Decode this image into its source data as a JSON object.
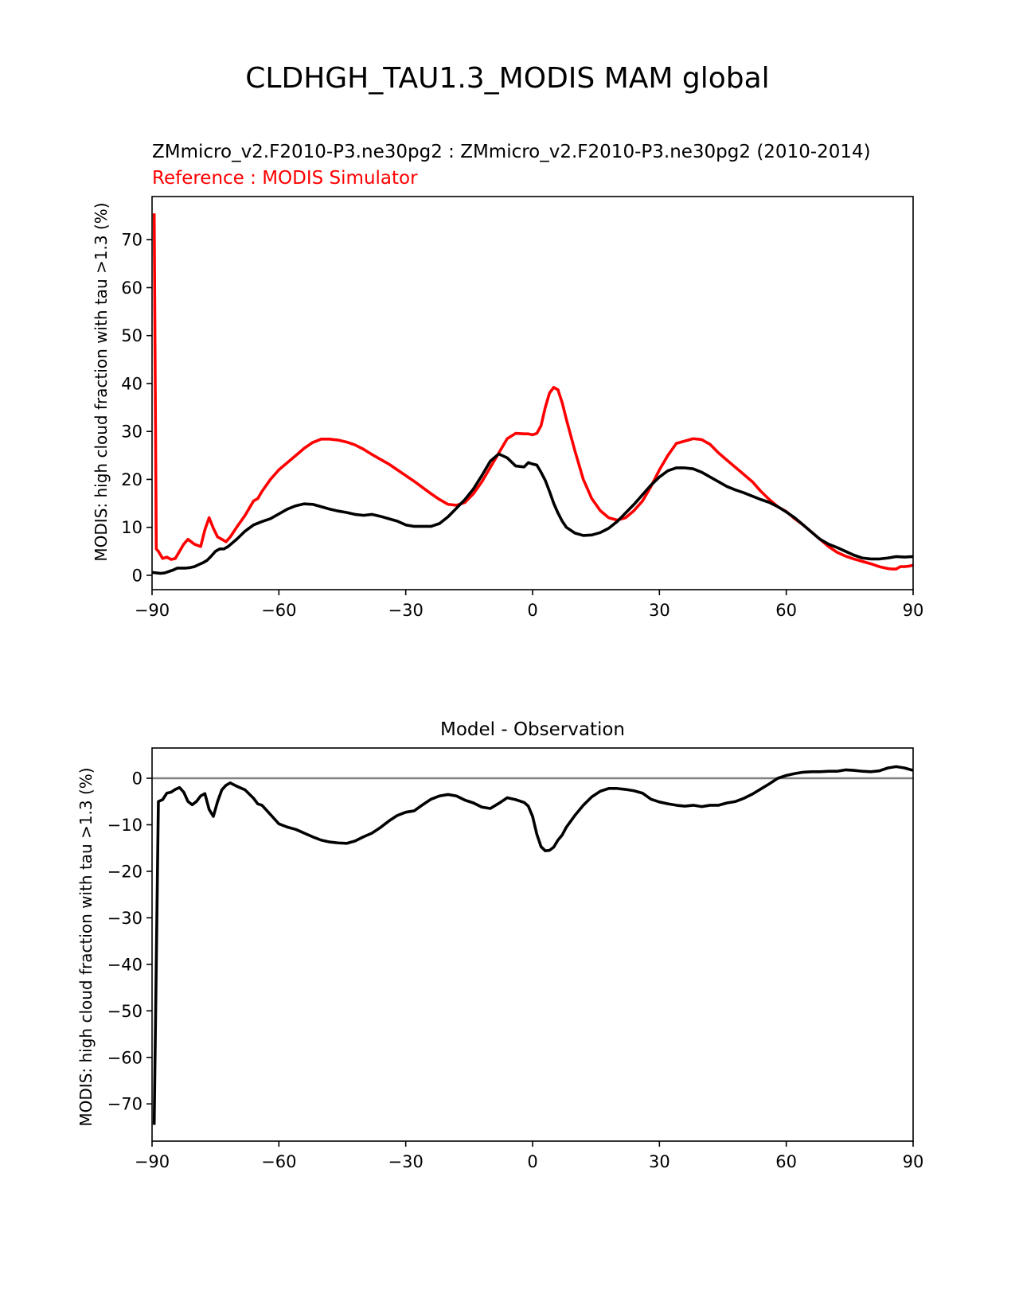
{
  "figure": {
    "title": "CLDHGH_TAU1.3_MODIS MAM global"
  },
  "chart_data": [
    {
      "type": "line",
      "title": "ZMmicro_v2.F2010-P3.ne30pg2 : ZMmicro_v2.F2010-P3.ne30pg2 (2010-2014)",
      "subtitle": "Reference : MODIS Simulator",
      "xlabel": "",
      "ylabel": "MODIS: high cloud fraction with tau >1.3 (%)",
      "xlim": [
        -90,
        90
      ],
      "ylim": [
        -3,
        79
      ],
      "xticks": [
        -90,
        -60,
        -30,
        0,
        30,
        60,
        90
      ],
      "xtick_labels": [
        "−90",
        "−60",
        "−30",
        "0",
        "30",
        "60",
        "90"
      ],
      "yticks": [
        0,
        10,
        20,
        30,
        40,
        50,
        60,
        70
      ],
      "ytick_labels": [
        "0",
        "10",
        "20",
        "30",
        "40",
        "50",
        "60",
        "70"
      ],
      "grid": false,
      "series": [
        {
          "color": "#ff0000",
          "x": [
            -89.5,
            -89,
            -88.5,
            -87.5,
            -86.5,
            -85.5,
            -84.5,
            -83.5,
            -82.5,
            -81.5,
            -80,
            -78.5,
            -77.5,
            -76.5,
            -75.5,
            -74.5,
            -73.5,
            -72.5,
            -71.5,
            -70,
            -68,
            -66,
            -65,
            -64,
            -62,
            -60,
            -58,
            -56,
            -54,
            -52,
            -50,
            -48,
            -46,
            -44,
            -42,
            -40,
            -38,
            -36,
            -34,
            -32,
            -30,
            -28,
            -26,
            -24,
            -22,
            -20,
            -18,
            -16,
            -14,
            -12,
            -10,
            -8,
            -6,
            -4,
            -2,
            -1,
            0,
            1,
            2,
            3,
            4,
            5,
            6,
            7,
            8,
            10,
            12,
            14,
            16,
            18,
            20,
            22,
            24,
            26,
            28,
            30,
            32,
            34,
            36,
            38,
            40,
            42,
            44,
            46,
            48,
            50,
            52,
            54,
            56,
            58,
            60,
            62,
            64,
            66,
            68,
            70,
            72,
            74,
            76,
            78,
            80,
            82,
            84,
            85,
            86,
            87,
            88,
            89,
            90
          ],
          "y": [
            75.5,
            5.5,
            5,
            3.5,
            3.8,
            3.3,
            3.5,
            5,
            6.5,
            7.5,
            6.5,
            6,
            9.5,
            12,
            9.8,
            8,
            7.5,
            7,
            8,
            10,
            12.5,
            15.5,
            16,
            17.5,
            20,
            22,
            23.5,
            25,
            26.5,
            27.7,
            28.4,
            28.4,
            28.2,
            27.8,
            27.2,
            26.3,
            25.2,
            24.2,
            23.2,
            22,
            20.8,
            19.6,
            18.3,
            17,
            15.8,
            14.8,
            14.6,
            15.2,
            17,
            19.5,
            22.5,
            25.5,
            28.5,
            29.6,
            29.5,
            29.5,
            29.3,
            29.6,
            31.2,
            35,
            38,
            39.2,
            38.7,
            36,
            32.5,
            26,
            20,
            16,
            13.5,
            12,
            11.5,
            12,
            13.5,
            15.5,
            18.5,
            22,
            25,
            27.5,
            28,
            28.5,
            28.3,
            27.3,
            25.5,
            24,
            22.5,
            21,
            19.5,
            17.5,
            15.8,
            14.3,
            13.3,
            11.8,
            10.5,
            9,
            7.5,
            6,
            4.8,
            4,
            3.4,
            2.9,
            2.4,
            1.8,
            1.4,
            1.3,
            1.3,
            1.8,
            1.8,
            1.9,
            2.1
          ]
        },
        {
          "color": "#000000",
          "x": [
            -90,
            -89,
            -88,
            -87,
            -86,
            -85,
            -84,
            -83,
            -82,
            -81,
            -80,
            -79,
            -78,
            -77,
            -76,
            -75,
            -74,
            -73,
            -72,
            -70,
            -68,
            -66,
            -64,
            -62,
            -60,
            -58,
            -56,
            -54,
            -52,
            -50,
            -48,
            -46,
            -44,
            -42,
            -40,
            -38,
            -36,
            -34,
            -32,
            -30,
            -28,
            -26,
            -24,
            -22,
            -20,
            -18,
            -16,
            -14,
            -12,
            -10,
            -8,
            -6,
            -4,
            -3,
            -2,
            -1,
            0,
            1,
            2,
            3,
            4,
            5,
            6,
            7,
            8,
            10,
            12,
            14,
            16,
            18,
            20,
            22,
            24,
            26,
            28,
            30,
            32,
            34,
            36,
            38,
            40,
            42,
            44,
            46,
            48,
            50,
            52,
            54,
            56,
            58,
            60,
            62,
            64,
            66,
            68,
            70,
            72,
            74,
            76,
            78,
            80,
            82,
            84,
            86,
            88,
            90
          ],
          "y": [
            0.6,
            0.5,
            0.4,
            0.5,
            0.8,
            1.1,
            1.5,
            1.5,
            1.5,
            1.6,
            1.8,
            2.2,
            2.6,
            3.1,
            4,
            5,
            5.5,
            5.5,
            6,
            7.5,
            9.2,
            10.5,
            11.2,
            11.8,
            12.8,
            13.8,
            14.5,
            14.9,
            14.8,
            14.3,
            13.8,
            13.4,
            13.1,
            12.7,
            12.5,
            12.7,
            12.3,
            11.8,
            11.3,
            10.5,
            10.2,
            10.2,
            10.2,
            10.8,
            12.2,
            14,
            15.8,
            18,
            20.8,
            23.8,
            25.3,
            24.5,
            22.8,
            22.7,
            22.6,
            23.5,
            23.2,
            23,
            21.5,
            19.8,
            17.5,
            15,
            13,
            11.3,
            10,
            8.8,
            8.3,
            8.4,
            8.9,
            9.8,
            11.2,
            13,
            14.8,
            16.8,
            18.8,
            20.5,
            21.8,
            22.4,
            22.4,
            22.2,
            21.5,
            20.5,
            19.5,
            18.5,
            17.8,
            17.2,
            16.5,
            15.8,
            15.2,
            14.3,
            13.2,
            12,
            10.5,
            9,
            7.5,
            6.5,
            5.8,
            5,
            4.2,
            3.6,
            3.4,
            3.4,
            3.6,
            3.9,
            3.8,
            3.9
          ]
        }
      ]
    },
    {
      "type": "line",
      "title": "Model - Observation",
      "xlabel": "",
      "ylabel": "MODIS: high cloud fraction with tau >1.3 (%)",
      "xlim": [
        -90,
        90
      ],
      "ylim": [
        -78,
        6.5
      ],
      "xticks": [
        -90,
        -60,
        -30,
        0,
        30,
        60,
        90
      ],
      "xtick_labels": [
        "−90",
        "−60",
        "−30",
        "0",
        "30",
        "60",
        "90"
      ],
      "yticks": [
        0,
        -10,
        -20,
        -30,
        -40,
        -50,
        -60,
        -70
      ],
      "ytick_labels": [
        "0",
        "−10",
        "−20",
        "−30",
        "−40",
        "−50",
        "−60",
        "−70"
      ],
      "grid": false,
      "zero_line_color": "#808080",
      "series": [
        {
          "color": "#000000",
          "x": [
            -89.5,
            -88.5,
            -87.5,
            -86.5,
            -85.5,
            -84.5,
            -83.5,
            -82.5,
            -81.5,
            -80.5,
            -79.5,
            -78.5,
            -77.5,
            -76.5,
            -75.5,
            -74.5,
            -73.5,
            -72.5,
            -71.5,
            -70,
            -68,
            -66,
            -65,
            -64,
            -62,
            -60,
            -58,
            -56,
            -54,
            -52,
            -50,
            -48,
            -46,
            -44,
            -42,
            -40,
            -38,
            -36,
            -34,
            -32,
            -30,
            -28,
            -26,
            -24,
            -22,
            -20,
            -18,
            -16,
            -14,
            -12,
            -10,
            -8,
            -6,
            -4,
            -2,
            -1,
            0,
            1,
            2,
            3,
            4,
            5,
            6,
            7,
            8,
            10,
            12,
            14,
            16,
            18,
            20,
            22,
            24,
            26,
            28,
            30,
            32,
            34,
            36,
            38,
            40,
            42,
            44,
            46,
            48,
            50,
            52,
            54,
            56,
            58,
            60,
            62,
            64,
            66,
            68,
            70,
            72,
            74,
            76,
            78,
            80,
            82,
            84,
            86,
            88,
            90
          ],
          "y": [
            -74.5,
            -5,
            -4.6,
            -3.2,
            -3,
            -2.4,
            -2,
            -3,
            -5,
            -5.7,
            -5,
            -3.8,
            -3.3,
            -6.7,
            -8.2,
            -5,
            -2.5,
            -1.5,
            -1,
            -1.7,
            -2.5,
            -4.3,
            -5.5,
            -5.8,
            -7.8,
            -9.8,
            -10.5,
            -11,
            -11.8,
            -12.6,
            -13.3,
            -13.7,
            -13.9,
            -14,
            -13.5,
            -12.6,
            -11.8,
            -10.6,
            -9.2,
            -8,
            -7.3,
            -7,
            -5.7,
            -4.5,
            -3.8,
            -3.5,
            -3.8,
            -4.7,
            -5.3,
            -6.2,
            -6.5,
            -5.4,
            -4.2,
            -4.6,
            -5.2,
            -6,
            -8.2,
            -12,
            -14.7,
            -15.6,
            -15.5,
            -14.8,
            -13.3,
            -12.2,
            -10.5,
            -8,
            -5.8,
            -4,
            -2.8,
            -2.2,
            -2.2,
            -2.4,
            -2.7,
            -3.2,
            -4.5,
            -5.1,
            -5.5,
            -5.8,
            -6,
            -5.8,
            -6.1,
            -5.8,
            -5.8,
            -5.3,
            -5,
            -4.3,
            -3.4,
            -2.3,
            -1.2,
            0,
            0.6,
            1,
            1.3,
            1.4,
            1.4,
            1.5,
            1.5,
            1.8,
            1.7,
            1.5,
            1.4,
            1.6,
            2.2,
            2.5,
            2.2,
            1.7
          ]
        }
      ]
    }
  ]
}
